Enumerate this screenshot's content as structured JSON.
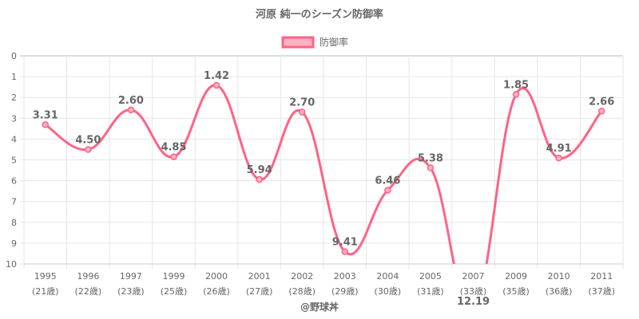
{
  "chart_data": {
    "type": "line",
    "title": "河原 純一のシーズン防御率",
    "legend": {
      "label": "防御率",
      "placement": "top"
    },
    "categories": [
      "1995",
      "1996",
      "1997",
      "1999",
      "2000",
      "2001",
      "2002",
      "2003",
      "2004",
      "2005",
      "2007",
      "2009",
      "2010",
      "2011"
    ],
    "sublabels": [
      "(21歳)",
      "(22歳)",
      "(23歳)",
      "(25歳)",
      "(26歳)",
      "(27歳)",
      "(28歳)",
      "(29歳)",
      "(30歳)",
      "(31歳)",
      "(33歳)",
      "(35歳)",
      "(36歳)",
      "(37歳)"
    ],
    "series": [
      {
        "name": "防御率",
        "values": [
          3.31,
          4.5,
          2.6,
          4.85,
          1.42,
          5.94,
          2.7,
          9.41,
          6.46,
          5.38,
          12.19,
          1.85,
          4.91,
          2.66
        ]
      }
    ],
    "data_labels": [
      "3.31",
      "4.50",
      "2.60",
      "4.85",
      "1.42",
      "5.94",
      "2.70",
      "9.41",
      "6.46",
      "5.38",
      "12.19",
      "1.85",
      "4.91",
      "2.66"
    ],
    "y_ticks": [
      "0",
      "1",
      "2",
      "3",
      "4",
      "5",
      "6",
      "7",
      "8",
      "9",
      "10"
    ],
    "ylim": [
      0,
      10
    ],
    "y_reversed": true,
    "grid": true,
    "colors": {
      "line": "#ff6384",
      "fill": "#ffb1c1",
      "grid": "#e6e6e6",
      "text": "#666666"
    }
  },
  "credit": "@野球丼"
}
